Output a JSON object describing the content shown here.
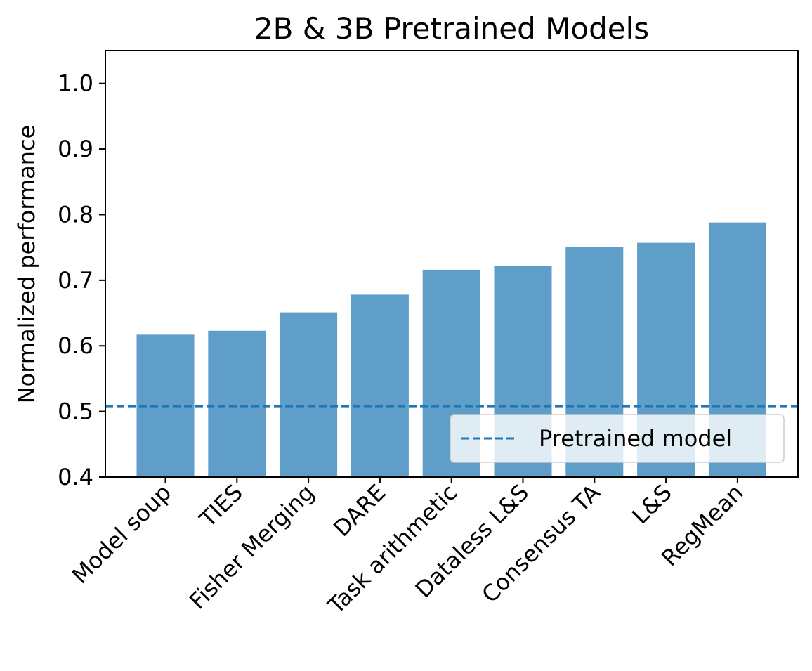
{
  "chart_data": {
    "type": "bar",
    "title": "2B & 3B Pretrained Models",
    "xlabel": "",
    "ylabel": "Normalized performance",
    "categories": [
      "Model soup",
      "TIES",
      "Fisher Merging",
      "DARE",
      "Task arithmetic",
      "Dataless L&S",
      "Consensus TA",
      "L&S",
      "RegMean"
    ],
    "values": [
      0.617,
      0.623,
      0.651,
      0.678,
      0.716,
      0.722,
      0.751,
      0.757,
      0.788
    ],
    "ylim": [
      0.4,
      1.05
    ],
    "yticks": [
      "0.4",
      "0.5",
      "0.6",
      "0.7",
      "0.8",
      "0.9",
      "1.0"
    ],
    "reference_line": {
      "label": "Pretrained model",
      "value": 0.508,
      "style": "dashed"
    },
    "legend": {
      "placement": "lower-right",
      "entries": [
        "Pretrained model"
      ]
    },
    "grid": false,
    "colors": {
      "bar": "#5f9ec9",
      "reference_line": "#1f77b4"
    }
  }
}
